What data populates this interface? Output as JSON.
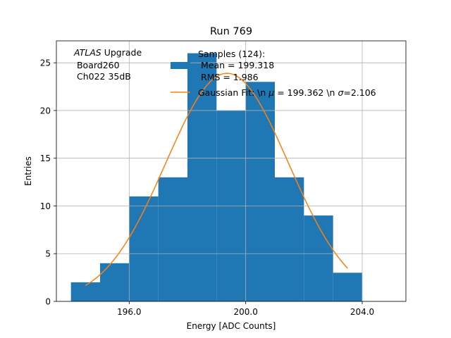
{
  "chart_data": {
    "type": "bar",
    "title": "Run 769",
    "xlabel": "Energy [ADC Counts]",
    "ylabel": "Entries",
    "xlim": [
      193.5,
      205.5
    ],
    "ylim": [
      0,
      27.3
    ],
    "xticks": [
      196,
      200,
      204
    ],
    "xtick_labels": [
      "196.0",
      "200.0",
      "204.0"
    ],
    "yticks": [
      0,
      5,
      10,
      15,
      20,
      25
    ],
    "grid": true,
    "bins": [
      {
        "x0": 194,
        "x1": 195,
        "count": 2
      },
      {
        "x0": 195,
        "x1": 196,
        "count": 4
      },
      {
        "x0": 196,
        "x1": 197,
        "count": 11
      },
      {
        "x0": 197,
        "x1": 198,
        "count": 13
      },
      {
        "x0": 198,
        "x1": 199,
        "count": 26
      },
      {
        "x0": 199,
        "x1": 200,
        "count": 20
      },
      {
        "x0": 200,
        "x1": 201,
        "count": 23
      },
      {
        "x0": 201,
        "x1": 202,
        "count": 13
      },
      {
        "x0": 202,
        "x1": 203,
        "count": 9
      },
      {
        "x0": 203,
        "x1": 204,
        "count": 3
      }
    ],
    "fit": {
      "name": "Gaussian Fit",
      "mu": 199.362,
      "sigma": 2.106,
      "amplitude": 23.9,
      "x_range": [
        194.5,
        203.5
      ]
    },
    "hist_color": "#1f77b4",
    "fit_color": "#ff7f0e",
    "annotation": {
      "experiment": "ATLAS",
      "upgrade": " Upgrade",
      "board": " Board260",
      "channel": " Ch022 35dB"
    },
    "legend": {
      "position": "top-center",
      "hist_title": "Samples (124):",
      "hist_mean": " Mean = 199.318",
      "hist_rms": " RMS = 1.986",
      "fit_prefix": "Gaussian Fit: \\n ",
      "mu_symbol": "μ",
      "mu_text": " = 199.362 \\n ",
      "sigma_symbol": "σ",
      "sigma_text": "=2.106"
    }
  }
}
